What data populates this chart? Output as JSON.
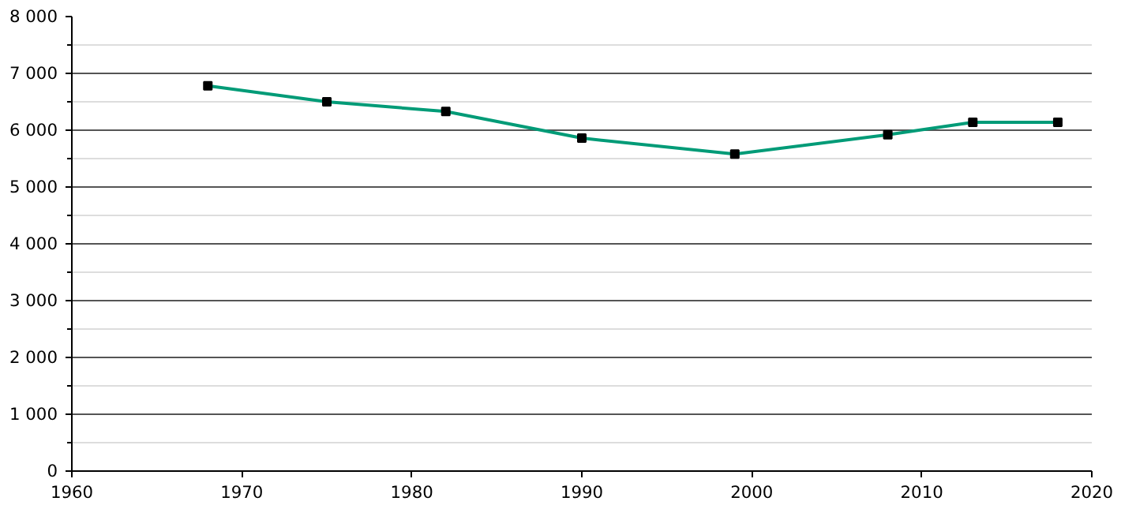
{
  "chart_data": {
    "type": "line",
    "x": [
      1968,
      1975,
      1982,
      1990,
      1999,
      2008,
      2013,
      2018
    ],
    "series": [
      {
        "color": "#009b77",
        "values": [
          6780,
          6500,
          6330,
          5860,
          5580,
          5920,
          6140,
          6140
        ]
      }
    ],
    "xlim": [
      1960,
      2020
    ],
    "xticks": [
      1960,
      1970,
      1980,
      1990,
      2000,
      2010,
      2020
    ],
    "ylim": [
      0,
      8000
    ],
    "yticks": [
      0,
      {
        "value": 500,
        "label": null
      },
      {
        "value": 1000,
        "label": "1 000"
      },
      {
        "value": 1500,
        "label": null
      },
      {
        "value": 2000,
        "label": "2 000"
      },
      {
        "value": 2500,
        "label": null
      },
      {
        "value": 3000,
        "label": "3 000"
      },
      {
        "value": 3500,
        "label": null
      },
      {
        "value": 4000,
        "label": "4 000"
      },
      {
        "value": 4500,
        "label": null
      },
      {
        "value": 5000,
        "label": "5 000"
      },
      {
        "value": 5500,
        "label": null
      },
      {
        "value": 6000,
        "label": "6 000"
      },
      {
        "value": 6500,
        "label": null
      },
      {
        "value": 7000,
        "label": "7 000"
      },
      {
        "value": 7500,
        "label": null
      },
      {
        "value": 8000,
        "label": "8 000"
      }
    ],
    "grid": "y",
    "marker": "square",
    "line_style": "solid"
  }
}
